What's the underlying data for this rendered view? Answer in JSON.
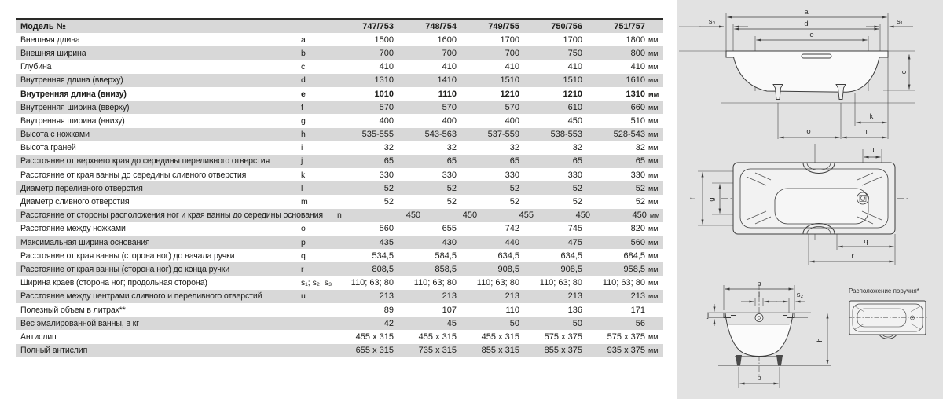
{
  "table": {
    "model_label": "Модель №",
    "columns": [
      "747/753",
      "748/754",
      "749/755",
      "750/756",
      "751/757"
    ],
    "rows": [
      {
        "label": "Внешняя длина",
        "letter": "a",
        "values": [
          "1500",
          "1600",
          "1700",
          "1700",
          "1800"
        ],
        "unit": "мм",
        "bold": false
      },
      {
        "label": "Внешняя ширина",
        "letter": "b",
        "values": [
          "700",
          "700",
          "700",
          "750",
          "800"
        ],
        "unit": "мм",
        "bold": false
      },
      {
        "label": "Глубина",
        "letter": "c",
        "values": [
          "410",
          "410",
          "410",
          "410",
          "410"
        ],
        "unit": "мм",
        "bold": false
      },
      {
        "label": "Внутренняя длина (вверху)",
        "letter": "d",
        "values": [
          "1310",
          "1410",
          "1510",
          "1510",
          "1610"
        ],
        "unit": "мм",
        "bold": false
      },
      {
        "label": "Внутренняя длина (внизу)",
        "letter": "e",
        "values": [
          "1010",
          "1110",
          "1210",
          "1210",
          "1310"
        ],
        "unit": "мм",
        "bold": true
      },
      {
        "label": "Внутренняя ширина (вверху)",
        "letter": "f",
        "values": [
          "570",
          "570",
          "570",
          "610",
          "660"
        ],
        "unit": "мм",
        "bold": false
      },
      {
        "label": "Внутренняя ширина (внизу)",
        "letter": "g",
        "values": [
          "400",
          "400",
          "400",
          "450",
          "510"
        ],
        "unit": "мм",
        "bold": false
      },
      {
        "label": "Высота с ножками",
        "letter": "h",
        "values": [
          "535-555",
          "543-563",
          "537-559",
          "538-553",
          "528-543"
        ],
        "unit": "мм",
        "bold": false
      },
      {
        "label": "Высота граней",
        "letter": "i",
        "values": [
          "32",
          "32",
          "32",
          "32",
          "32"
        ],
        "unit": "мм",
        "bold": false
      },
      {
        "label": "Расстояние от верхнего края до середины переливного отверстия",
        "letter": "j",
        "values": [
          "65",
          "65",
          "65",
          "65",
          "65"
        ],
        "unit": "мм",
        "bold": false
      },
      {
        "label": "Расстояние от края ванны до середины сливного отверстия",
        "letter": "k",
        "values": [
          "330",
          "330",
          "330",
          "330",
          "330"
        ],
        "unit": "мм",
        "bold": false
      },
      {
        "label": "Диаметр переливного отверстия",
        "letter": "l",
        "values": [
          "52",
          "52",
          "52",
          "52",
          "52"
        ],
        "unit": "мм",
        "bold": false
      },
      {
        "label": "Диаметр сливного отверстия",
        "letter": "m",
        "values": [
          "52",
          "52",
          "52",
          "52",
          "52"
        ],
        "unit": "мм",
        "bold": false
      },
      {
        "label": "Расстояние от стороны расположения ног и края ванны до середины основания",
        "letter": "n",
        "values": [
          "450",
          "450",
          "455",
          "450",
          "450"
        ],
        "unit": "мм",
        "bold": false
      },
      {
        "label": "Расстояние между ножками",
        "letter": "o",
        "values": [
          "560",
          "655",
          "742",
          "745",
          "820"
        ],
        "unit": "мм",
        "bold": false
      },
      {
        "label": "Максимальная ширина основания",
        "letter": "p",
        "values": [
          "435",
          "430",
          "440",
          "475",
          "560"
        ],
        "unit": "мм",
        "bold": false
      },
      {
        "label": "Расстояние от края ванны (сторона ног) до начала ручки",
        "letter": "q",
        "values": [
          "534,5",
          "584,5",
          "634,5",
          "634,5",
          "684,5"
        ],
        "unit": "мм",
        "bold": false
      },
      {
        "label": "Расстояние от края ванны (сторона ног) до конца ручки",
        "letter": "r",
        "values": [
          "808,5",
          "858,5",
          "908,5",
          "908,5",
          "958,5"
        ],
        "unit": "мм",
        "bold": false
      },
      {
        "label": "Ширина краев (сторона ног; продольная сторона)",
        "letter": "s₁; s₂; s₃",
        "values": [
          "110; 63; 80",
          "110; 63; 80",
          "110; 63; 80",
          "110; 63; 80",
          "110; 63; 80"
        ],
        "unit": "мм",
        "bold": false
      },
      {
        "label": "Расстояние между центрами сливного и переливного отверстий",
        "letter": "u",
        "values": [
          "213",
          "213",
          "213",
          "213",
          "213"
        ],
        "unit": "мм",
        "bold": false
      },
      {
        "label": "Полезный объем в литрах**",
        "letter": "",
        "values": [
          "89",
          "107",
          "110",
          "136",
          "171"
        ],
        "unit": "",
        "bold": false
      },
      {
        "label": "Вес эмалированной ванны, в кг",
        "letter": "",
        "values": [
          "42",
          "45",
          "50",
          "50",
          "56"
        ],
        "unit": "",
        "bold": false
      },
      {
        "label": "Антислип",
        "letter": "",
        "values": [
          "455 x 315",
          "455 x 315",
          "455 x 315",
          "575 x 375",
          "575 x 375"
        ],
        "unit": "мм",
        "bold": false
      },
      {
        "label": "Полный антислип",
        "letter": "",
        "values": [
          "655 x 315",
          "735 x 315",
          "855 x 315",
          "855 x 375",
          "935 x 375"
        ],
        "unit": "мм",
        "bold": false
      }
    ]
  },
  "diagrams": {
    "side": {
      "a": "a",
      "d": "d",
      "e": "e",
      "s3": "s₃",
      "s1": "s₁",
      "c": "c",
      "k": "k",
      "o": "o",
      "n": "n"
    },
    "top": {
      "u": "u",
      "f": "f",
      "g": "g",
      "q": "q",
      "r": "r"
    },
    "end": {
      "b": "b",
      "l": "l",
      "s2": "s₂",
      "j": "j",
      "h": "h",
      "p": "p"
    },
    "handle_note": "Расположение поручня*"
  }
}
